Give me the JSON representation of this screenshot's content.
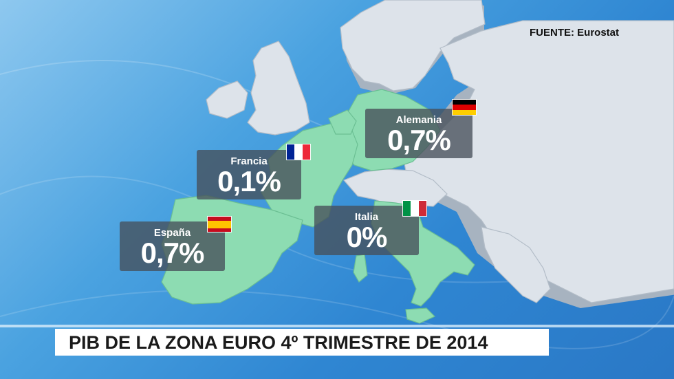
{
  "source_label": "FUENTE: Eurostat",
  "title": "PIB DE LA ZONA EURO 4º TRIMESTRE DE 2014",
  "countries": [
    {
      "name": "Alemania",
      "value": "0,7%",
      "flag": "flag-germany-icon",
      "colors": [
        "#000000",
        "#dd0000",
        "#ffce00"
      ]
    },
    {
      "name": "Francia",
      "value": "0,1%",
      "flag": "flag-france-icon",
      "colors": [
        "#002395",
        "#ffffff",
        "#ed2939"
      ]
    },
    {
      "name": "España",
      "value": "0,7%",
      "flag": "flag-spain-icon",
      "colors": [
        "#c60b1e",
        "#ffc400",
        "#c60b1e"
      ]
    },
    {
      "name": "Italia",
      "value": "0%",
      "flag": "flag-italy-icon",
      "colors": [
        "#009246",
        "#ffffff",
        "#ce2b37"
      ]
    }
  ],
  "colors": {
    "background": "#3b8fd6",
    "land": "#dfe5ec",
    "highlight_land": "#8fdcb3",
    "title_bar": "#ffffff"
  }
}
